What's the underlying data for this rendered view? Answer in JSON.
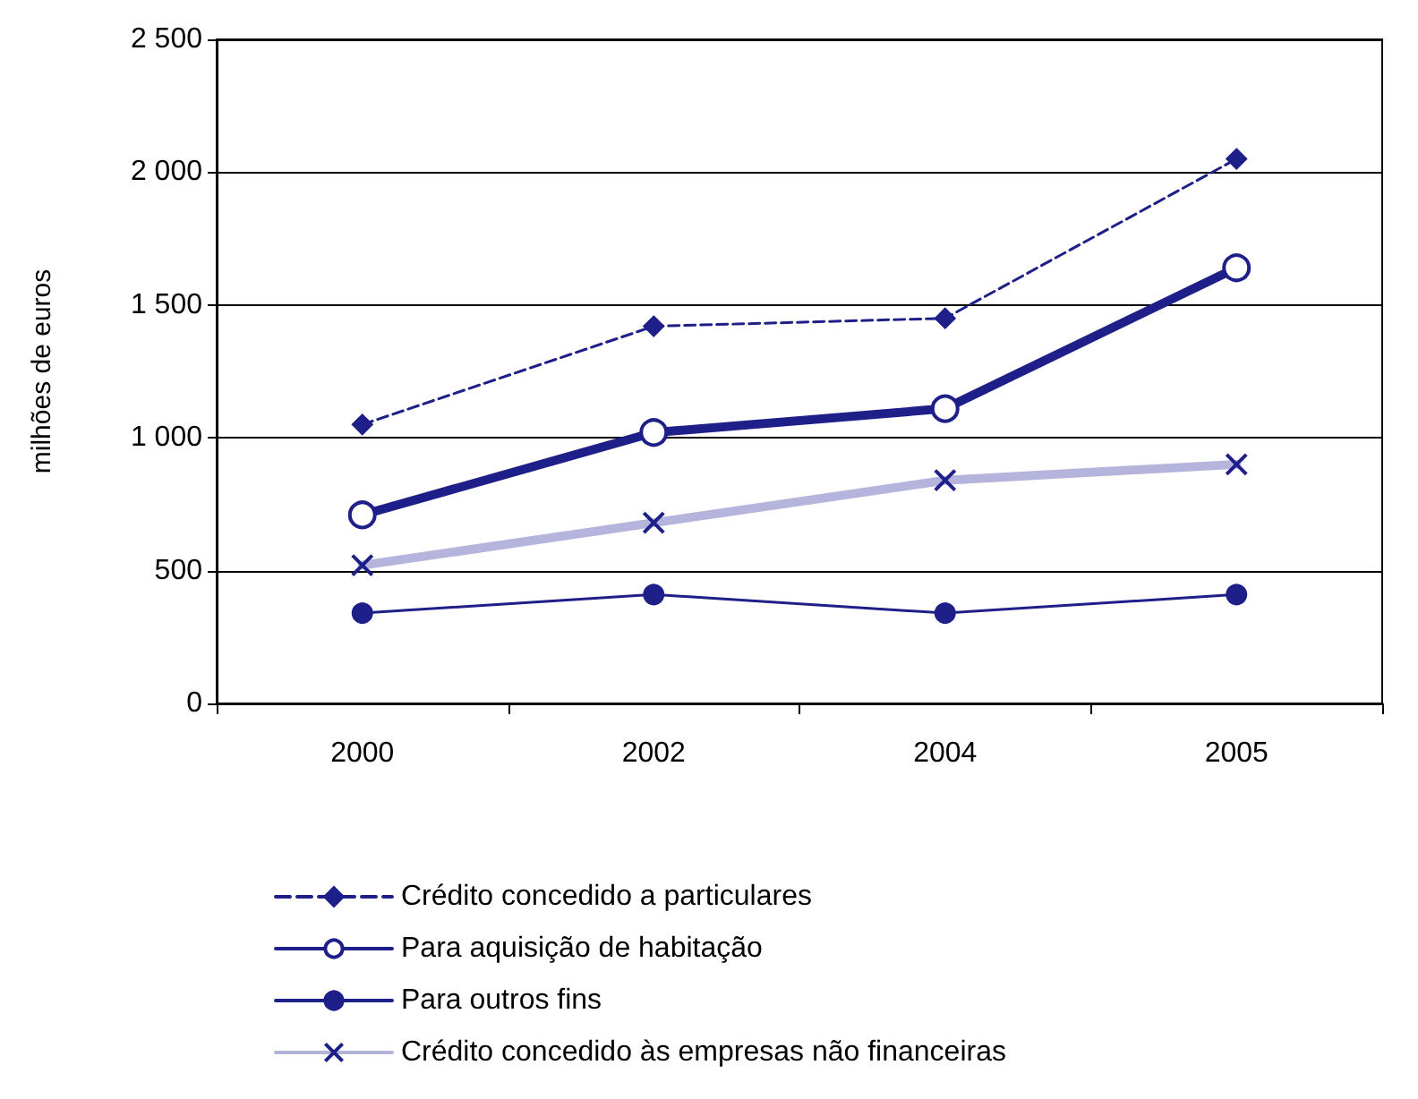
{
  "chart_data": {
    "type": "line",
    "ylabel": "milhões de euros",
    "categories": [
      "2000",
      "2002",
      "2004",
      "2005"
    ],
    "series": [
      {
        "name": "Crédito concedido a particulares",
        "color": "#1f1f8a",
        "values": [
          1050,
          1420,
          1450,
          2050
        ],
        "marker": "diamond",
        "line_style": "dashed"
      },
      {
        "name": "Para aquisição de habitação",
        "color": "#1f1f8a",
        "values": [
          710,
          1020,
          1110,
          1640
        ],
        "marker": "circle",
        "line_style": "solid"
      },
      {
        "name": "Para outros fins",
        "color": "#1f1f8a",
        "values": [
          340,
          410,
          340,
          410
        ],
        "marker": "circle",
        "line_style": "solid"
      },
      {
        "name": "Crédito concedido às empresas não financeiras",
        "color": "#b4b4dc",
        "values": [
          520,
          680,
          840,
          900
        ],
        "marker": "cross",
        "line_style": "solid"
      }
    ],
    "ylim": [
      0,
      2500
    ],
    "yticks": [
      0,
      500,
      {
        "value": 1000,
        "label": "1 000"
      },
      {
        "value": 1500,
        "label": "1 500"
      },
      {
        "value": 2000,
        "label": "2 000"
      },
      {
        "value": 2500,
        "label": "2 500"
      }
    ],
    "grid": "y",
    "legend": "bottom"
  }
}
